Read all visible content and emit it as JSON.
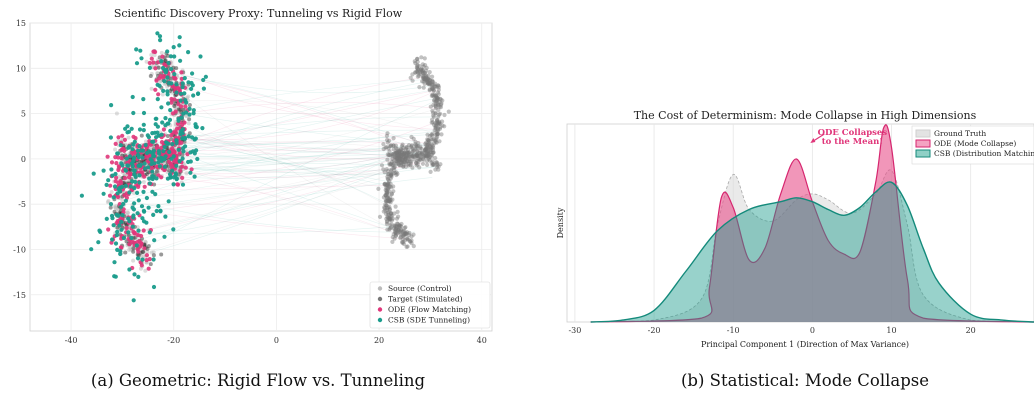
{
  "chart_data": [
    {
      "type": "scatter",
      "title": "Scientific Discovery Proxy: Tunneling vs Rigid Flow",
      "caption": "(a) Geometric: Rigid Flow vs. Tunneling",
      "xlim": [
        -48,
        42
      ],
      "ylim": [
        -19,
        15
      ],
      "x_ticks": [
        -40,
        -20,
        0,
        20,
        40
      ],
      "y_ticks": [
        -15,
        -10,
        -5,
        0,
        5,
        10,
        15
      ],
      "grid": true,
      "legend_position": "bottom-right",
      "series": [
        {
          "name": "Source (Control)",
          "color": "#bbbbbb",
          "shape": "double-crescent",
          "center": [
            -25,
            0
          ],
          "x_range": [
            -38,
            -12
          ],
          "y_range": [
            -11,
            11
          ]
        },
        {
          "name": "Target (Stimulated)",
          "color": "#777777",
          "shape": "double-crescent",
          "center": [
            25,
            1
          ],
          "x_range": [
            16,
            37
          ],
          "y_range": [
            -11,
            10
          ]
        },
        {
          "name": "ODE (Flow Matching)",
          "color": "#e0367a",
          "shape": "double-crescent",
          "center": [
            -25,
            0
          ],
          "x_range": [
            -38,
            -14
          ],
          "y_range": [
            -10,
            10
          ]
        },
        {
          "name": "CSB (SDE Tunneling)",
          "color": "#1a9c8c",
          "shape": "double-crescent-scattered",
          "center": [
            -25,
            0
          ],
          "x_range": [
            -47,
            -9
          ],
          "y_range": [
            -18,
            13
          ]
        }
      ]
    },
    {
      "type": "area",
      "title": "The Cost of Determinism: Mode Collapse in High Dimensions",
      "caption": "(b) Statistical: Mode Collapse",
      "xlabel": "Principal Component 1 (Direction of Max Variance)",
      "ylabel": "Density",
      "xlim": [
        -31,
        28
      ],
      "x_ticks": [
        -30,
        -20,
        -10,
        0,
        10,
        20
      ],
      "grid": true,
      "legend_position": "top-right",
      "annotation": {
        "text_lines": [
          "ODE Collapses",
          "to the Mean!"
        ],
        "x": 0,
        "y": 0.96
      },
      "series": [
        {
          "name": "Ground Truth",
          "color": "#d9d9d9",
          "x": [
            -28,
            -20,
            -14,
            -12,
            -10,
            -8,
            -5,
            -2,
            0,
            2,
            5,
            8,
            10,
            12,
            14,
            20,
            28
          ],
          "y": [
            0.0,
            0.01,
            0.12,
            0.5,
            0.76,
            0.58,
            0.52,
            0.63,
            0.66,
            0.63,
            0.56,
            0.66,
            0.78,
            0.5,
            0.14,
            0.01,
            0.0
          ]
        },
        {
          "name": "ODE (Mode Collapse)",
          "color": "#e8508a",
          "x": [
            -28,
            -14,
            -13,
            -11.5,
            -10,
            -8,
            -6,
            -4,
            -2,
            0,
            2,
            4,
            6,
            8,
            9,
            10,
            12,
            14,
            28
          ],
          "y": [
            0.0,
            0.02,
            0.18,
            0.64,
            0.59,
            0.32,
            0.38,
            0.66,
            0.84,
            0.62,
            0.42,
            0.35,
            0.36,
            0.72,
            1.0,
            0.9,
            0.22,
            0.02,
            0.0
          ]
        },
        {
          "name": "CSB (Distribution Matching)",
          "color": "#1a9c8c",
          "x": [
            -28,
            -24,
            -20,
            -16,
            -12,
            -8,
            -4,
            -2,
            0,
            2,
            4,
            6,
            8,
            10,
            12,
            14,
            16,
            20,
            24,
            28
          ],
          "y": [
            0.0,
            0.01,
            0.06,
            0.26,
            0.47,
            0.58,
            0.62,
            0.64,
            0.62,
            0.58,
            0.55,
            0.59,
            0.67,
            0.72,
            0.6,
            0.38,
            0.2,
            0.04,
            0.01,
            0.0
          ]
        }
      ]
    }
  ]
}
